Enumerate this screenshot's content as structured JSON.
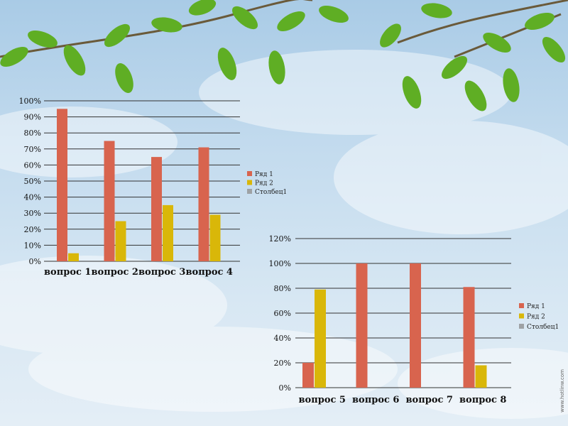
{
  "watermark": "www.hotlinw.com",
  "colors": {
    "series1": "#d8644e",
    "series2": "#d9b709",
    "series3": "#9ea2a5",
    "grid": "#333333"
  },
  "chart_data": [
    {
      "type": "bar",
      "categories": [
        "вопрос 1",
        "вопрос 2",
        "вопрос 3",
        "вопрос 4"
      ],
      "series": [
        {
          "name": "Ряд 1",
          "values": [
            95,
            75,
            65,
            71
          ]
        },
        {
          "name": "Ряд 2",
          "values": [
            5,
            25,
            35,
            29
          ]
        },
        {
          "name": "Столбец1",
          "values": [
            null,
            null,
            null,
            null
          ]
        }
      ],
      "ylim": [
        0,
        100
      ],
      "yticks": [
        0,
        10,
        20,
        30,
        40,
        50,
        60,
        70,
        80,
        90,
        100
      ],
      "ytick_labels": [
        "0%",
        "10%",
        "20%",
        "30%",
        "40%",
        "50%",
        "60%",
        "70%",
        "80%",
        "90%",
        "100%"
      ],
      "grid": true,
      "legend": "right"
    },
    {
      "type": "bar",
      "categories": [
        "вопрос 5",
        "вопрос 6",
        "вопрос 7",
        "вопрос 8"
      ],
      "series": [
        {
          "name": "Ряд 1",
          "values": [
            20,
            100,
            100,
            81
          ]
        },
        {
          "name": "Ряд 2",
          "values": [
            79,
            0,
            0,
            18
          ]
        },
        {
          "name": "Столбец1",
          "values": [
            null,
            null,
            null,
            null
          ]
        }
      ],
      "ylim": [
        0,
        120
      ],
      "yticks": [
        0,
        20,
        40,
        60,
        80,
        100,
        120
      ],
      "ytick_labels": [
        "0%",
        "20%",
        "40%",
        "60%",
        "80%",
        "100%",
        "120%"
      ],
      "grid": true,
      "legend": "right"
    }
  ]
}
